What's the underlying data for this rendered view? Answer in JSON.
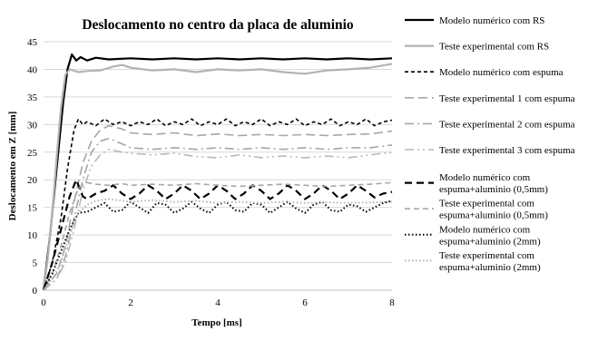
{
  "chart_data": {
    "type": "line",
    "title": "Deslocamento no centro da placa de aluminio",
    "xlabel": "Tempo [ms]",
    "ylabel": "Deslocamento em Z [mm]",
    "xlim": [
      0,
      8
    ],
    "ylim": [
      0,
      45
    ],
    "xticks": [
      0,
      2,
      4,
      6,
      8
    ],
    "yticks": [
      0,
      5,
      10,
      15,
      20,
      25,
      30,
      35,
      40,
      45
    ],
    "grid": "horizontal",
    "legend_position": "right",
    "series": [
      {
        "name": "Modelo numérico com RS",
        "color": "#000000",
        "stroke_width": 2.2,
        "dash": "",
        "x": [
          0,
          0.15,
          0.3,
          0.45,
          0.55,
          0.65,
          0.75,
          0.85,
          1.0,
          1.2,
          1.5,
          2.0,
          2.5,
          3.0,
          3.5,
          4.0,
          4.5,
          5.0,
          5.5,
          6.0,
          6.5,
          7.0,
          7.5,
          8.0
        ],
        "y": [
          0,
          10,
          22,
          34,
          40,
          42.7,
          41.6,
          42.2,
          41.6,
          42.1,
          41.8,
          42.0,
          41.8,
          42.0,
          41.8,
          42.0,
          41.8,
          42.0,
          41.8,
          42.0,
          41.8,
          42.0,
          41.8,
          42.0
        ]
      },
      {
        "name": "Teste experimental com RS",
        "color": "#b3b3b3",
        "stroke_width": 2.2,
        "dash": "",
        "x": [
          0,
          0.1,
          0.2,
          0.3,
          0.4,
          0.5,
          0.6,
          0.8,
          1.0,
          1.3,
          1.6,
          1.8,
          2.0,
          2.5,
          3.0,
          3.5,
          4.0,
          4.5,
          5.0,
          5.5,
          6.0,
          6.5,
          7.0,
          7.5,
          8.0
        ],
        "y": [
          0,
          6,
          14,
          24,
          33,
          39,
          40,
          39.5,
          39.7,
          39.8,
          40.5,
          40.8,
          40.3,
          39.8,
          40.0,
          39.5,
          40.0,
          39.8,
          40.0,
          39.5,
          39.2,
          39.8,
          40.0,
          40.3,
          41.0
        ]
      },
      {
        "name": "Modelo numérico com espuma",
        "color": "#000000",
        "stroke_width": 1.6,
        "dash": "4,3",
        "x": [
          0,
          0.2,
          0.4,
          0.55,
          0.7,
          0.8,
          0.9,
          1.0,
          1.2,
          1.4,
          1.6,
          1.8,
          2.0,
          2.2,
          2.4,
          2.6,
          2.8,
          3.0,
          3.2,
          3.4,
          3.6,
          3.8,
          4.0,
          4.2,
          4.4,
          4.6,
          4.8,
          5.0,
          5.2,
          5.4,
          5.6,
          5.8,
          6.0,
          6.2,
          6.4,
          6.6,
          6.8,
          7.0,
          7.2,
          7.4,
          7.6,
          7.8,
          8.0
        ],
        "y": [
          0,
          5,
          13,
          22,
          29,
          31,
          30,
          30.5,
          29.8,
          31,
          30,
          30.5,
          29.8,
          30.5,
          30,
          31,
          29.8,
          30.5,
          30,
          31,
          29.8,
          30.5,
          30,
          31,
          29.8,
          30.5,
          30,
          31,
          29.8,
          30.5,
          30,
          31,
          29.8,
          30.5,
          30,
          31,
          29.8,
          30.5,
          30,
          31,
          29.8,
          30.5,
          30.8
        ]
      },
      {
        "name": "Teste experimental 1 com espuma",
        "color": "#a6a6a6",
        "stroke_width": 1.6,
        "dash": "10,5",
        "x": [
          0,
          0.3,
          0.5,
          0.7,
          0.9,
          1.1,
          1.3,
          1.5,
          1.8,
          2.0,
          2.5,
          3.0,
          3.5,
          4.0,
          4.5,
          5.0,
          5.5,
          6.0,
          6.5,
          7.0,
          7.5,
          8.0
        ],
        "y": [
          0,
          3,
          8,
          16,
          23,
          27,
          29,
          29.8,
          29.2,
          28.5,
          28.2,
          28.5,
          28.0,
          28.3,
          28.0,
          28.2,
          28.0,
          28.2,
          28.0,
          28.2,
          28.3,
          28.8
        ]
      },
      {
        "name": "Teste experimental 2 com espuma",
        "color": "#a6a6a6",
        "stroke_width": 1.6,
        "dash": "10,4,2,4",
        "x": [
          0,
          0.3,
          0.5,
          0.7,
          0.9,
          1.1,
          1.3,
          1.5,
          1.8,
          2.0,
          2.5,
          3.0,
          3.5,
          4.0,
          4.5,
          5.0,
          5.5,
          6.0,
          6.5,
          7.0,
          7.5,
          8.0
        ],
        "y": [
          0,
          2,
          6,
          13,
          20,
          25,
          27,
          27.5,
          26.5,
          25.8,
          25.5,
          25.8,
          25.5,
          25.8,
          25.5,
          25.8,
          25.5,
          25.8,
          25.5,
          25.8,
          25.8,
          26.3
        ]
      },
      {
        "name": "Teste experimental 3 com espuma",
        "color": "#b8b8b8",
        "stroke_width": 1.6,
        "dash": "10,4,2,4,2,4",
        "x": [
          0,
          0.3,
          0.5,
          0.7,
          0.9,
          1.1,
          1.3,
          1.5,
          1.8,
          2.0,
          2.5,
          3.0,
          3.5,
          4.0,
          4.5,
          5.0,
          5.5,
          6.0,
          6.5,
          7.0,
          7.5,
          8.0
        ],
        "y": [
          0,
          2,
          5,
          11,
          18,
          22.5,
          24.5,
          25.5,
          25,
          24.8,
          24.5,
          24.8,
          24.2,
          24.0,
          24.5,
          24.0,
          24.3,
          24.0,
          24.3,
          24.0,
          24.5,
          25.0
        ]
      },
      {
        "name": "Modelo numérico com espuma+aluminio (0,5mm)",
        "color": "#000000",
        "stroke_width": 2.2,
        "dash": "8,5",
        "x": [
          0,
          0.2,
          0.4,
          0.6,
          0.75,
          0.9,
          1.0,
          1.2,
          1.4,
          1.6,
          1.8,
          2.0,
          2.2,
          2.4,
          2.6,
          2.8,
          3.0,
          3.2,
          3.4,
          3.6,
          3.8,
          4.0,
          4.2,
          4.4,
          4.6,
          4.8,
          5.0,
          5.2,
          5.4,
          5.6,
          5.8,
          6.0,
          6.2,
          6.4,
          6.6,
          6.8,
          7.0,
          7.2,
          7.4,
          7.6,
          7.8,
          8.0
        ],
        "y": [
          0,
          5,
          11,
          17,
          20,
          17,
          16.5,
          17.5,
          18,
          19,
          17.5,
          16.5,
          17.5,
          19,
          18,
          16.5,
          17.5,
          19,
          18,
          16.5,
          17.5,
          19,
          18,
          16.5,
          17.5,
          19,
          18,
          16.5,
          17.5,
          19,
          18,
          16.5,
          17.5,
          19,
          18,
          16.5,
          17.5,
          19,
          18,
          16.8,
          17.5,
          17.8
        ]
      },
      {
        "name": "Teste experimental com espuma+aluminio (0,5mm)",
        "color": "#a6a6a6",
        "stroke_width": 1.6,
        "dash": "6,4",
        "x": [
          0,
          0.2,
          0.4,
          0.6,
          0.8,
          1.0,
          1.2,
          1.5,
          1.8,
          2.0,
          2.5,
          3.0,
          3.5,
          4.0,
          4.5,
          5.0,
          5.5,
          6.0,
          6.5,
          7.0,
          7.5,
          8.0
        ],
        "y": [
          0,
          3,
          8,
          14,
          18.5,
          19.5,
          19.2,
          19.0,
          19.3,
          19.0,
          19.2,
          19.0,
          19.3,
          19.0,
          18.8,
          19.0,
          19.2,
          19.0,
          18.8,
          19.0,
          19.2,
          19.5
        ]
      },
      {
        "name": "Modelo numérico com espuma+aluminio (2mm)",
        "color": "#000000",
        "stroke_width": 2.0,
        "dash": "1.5,2.5",
        "x": [
          0,
          0.2,
          0.4,
          0.6,
          0.8,
          1.0,
          1.2,
          1.4,
          1.6,
          1.8,
          2.0,
          2.2,
          2.4,
          2.6,
          2.8,
          3.0,
          3.2,
          3.4,
          3.6,
          3.8,
          4.0,
          4.2,
          4.4,
          4.6,
          4.8,
          5.0,
          5.2,
          5.4,
          5.6,
          5.8,
          6.0,
          6.2,
          6.4,
          6.6,
          6.8,
          7.0,
          7.2,
          7.4,
          7.6,
          7.8,
          8.0
        ],
        "y": [
          0,
          3,
          7,
          11,
          14,
          14.2,
          15,
          15.8,
          14.2,
          14.5,
          16,
          15,
          14,
          15.8,
          15.5,
          14,
          14.8,
          16,
          14.8,
          14,
          15.5,
          16,
          14.5,
          14.2,
          15.8,
          15.5,
          14,
          15,
          16,
          14.8,
          14,
          15.5,
          16,
          14.5,
          14.2,
          15.5,
          15.2,
          14.2,
          15,
          15.8,
          16.2
        ]
      },
      {
        "name": "Teste experimental com espuma+aluminio (2mm)",
        "color": "#b3b3b3",
        "stroke_width": 2.0,
        "dash": "1.5,2.5",
        "x": [
          0,
          0.2,
          0.4,
          0.6,
          0.8,
          1.0,
          1.2,
          1.5,
          2.0,
          2.5,
          3.0,
          3.5,
          4.0,
          4.5,
          5.0,
          5.5,
          6.0,
          6.5,
          7.0,
          7.5,
          8.0
        ],
        "y": [
          0,
          2,
          5,
          10,
          14,
          15.5,
          16.2,
          16.5,
          16.0,
          16.3,
          16.0,
          16.2,
          15.8,
          16.0,
          15.8,
          16.0,
          15.8,
          15.9,
          15.8,
          15.9,
          16.0
        ]
      }
    ]
  }
}
